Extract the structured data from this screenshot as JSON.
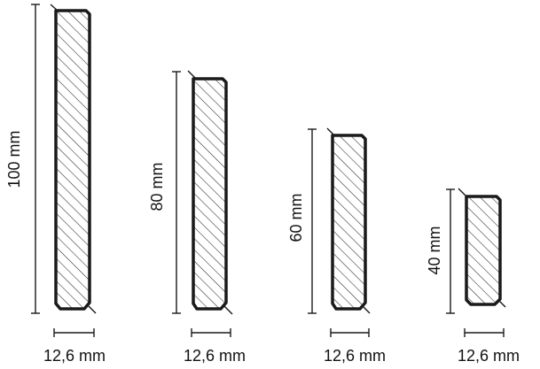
{
  "profiles": [
    {
      "height_label": "100 mm",
      "width_label": "12,6 mm"
    },
    {
      "height_label": "80 mm",
      "width_label": "12,6 mm"
    },
    {
      "height_label": "60 mm",
      "width_label": "12,6 mm"
    },
    {
      "height_label": "40 mm",
      "width_label": "12,6 mm"
    }
  ]
}
